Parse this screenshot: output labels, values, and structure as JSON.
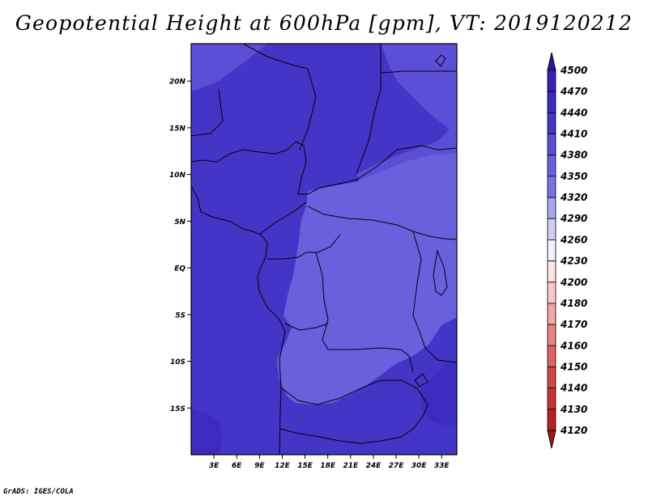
{
  "chart_data": {
    "type": "heatmap",
    "title": "Geopotential Height at 600hPa [gpm], VT: 2019120212",
    "variable": "Geopotential Height",
    "level": "600hPa",
    "units": "gpm",
    "valid_time": "2019120212",
    "xlim": [
      0,
      35
    ],
    "ylim": [
      -20,
      24
    ],
    "x_ticks": [
      {
        "value": 3,
        "label": "3E"
      },
      {
        "value": 6,
        "label": "6E"
      },
      {
        "value": 9,
        "label": "9E"
      },
      {
        "value": 12,
        "label": "12E"
      },
      {
        "value": 15,
        "label": "15E"
      },
      {
        "value": 18,
        "label": "18E"
      },
      {
        "value": 21,
        "label": "21E"
      },
      {
        "value": 24,
        "label": "24E"
      },
      {
        "value": 27,
        "label": "27E"
      },
      {
        "value": 30,
        "label": "30E"
      },
      {
        "value": 33,
        "label": "33E"
      }
    ],
    "y_ticks": [
      {
        "value": 20,
        "label": "20N"
      },
      {
        "value": 15,
        "label": "15N"
      },
      {
        "value": 10,
        "label": "10N"
      },
      {
        "value": 5,
        "label": "5N"
      },
      {
        "value": 0,
        "label": "EQ"
      },
      {
        "value": -5,
        "label": "5S"
      },
      {
        "value": -10,
        "label": "10S"
      },
      {
        "value": -15,
        "label": "15S"
      }
    ],
    "colorbar": {
      "labels": [
        "4500",
        "4470",
        "4440",
        "4410",
        "4380",
        "4350",
        "4320",
        "4290",
        "4260",
        "4230",
        "4200",
        "4180",
        "4170",
        "4160",
        "4150",
        "4140",
        "4130",
        "4120"
      ],
      "colors": [
        "#2a17a8",
        "#3621b6",
        "#3d2bbf",
        "#4535c7",
        "#5c4fd6",
        "#6a60de",
        "#7a72e6",
        "#a8a4f0",
        "#cfcdf6",
        "#f4f1fc",
        "#fde6e6",
        "#f9c7c7",
        "#f2a6a6",
        "#e78585",
        "#de6464",
        "#d44747",
        "#c93232",
        "#b82222",
        "#a51414"
      ]
    },
    "regions": [
      {
        "name": "base",
        "value": 4410,
        "color": "#4535c7"
      },
      {
        "name": "northeast-ridge",
        "value": 4380,
        "color": "#5c4fd6"
      },
      {
        "name": "northwest-corner",
        "value": 4380,
        "color": "#5c4fd6"
      },
      {
        "name": "central-africa-plateau",
        "value": 4350,
        "color": "#6a60de"
      },
      {
        "name": "southwest-trough",
        "value": 4440,
        "color": "#3d2bbf"
      }
    ]
  },
  "footer": {
    "credit": "GrADS: IGES/COLA"
  }
}
